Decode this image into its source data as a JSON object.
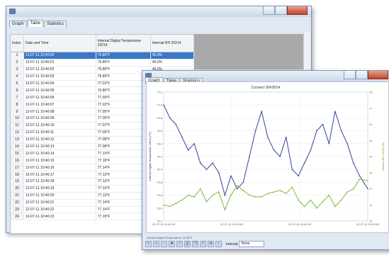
{
  "back_window": {
    "tabs": [
      "Graph",
      "Table",
      "Statistics"
    ],
    "active_tab": 1,
    "columns": [
      "Index",
      "Date and Time",
      "Internal Digital Temperature 20214",
      "Internal RH 20214"
    ],
    "rows": [
      [
        "1",
        "12-07-11 10:40:00",
        "76.80°F",
        "46.3%"
      ],
      [
        "2",
        "12-07-11 10:40:01",
        "76.80°F",
        "46.3%"
      ],
      [
        "3",
        "12-07-11 10:40:02",
        "76.80°F",
        "46.3%"
      ],
      [
        "4",
        "12-07-11 10:40:03",
        "76.80°F",
        "46.3%"
      ],
      [
        "5",
        "12-07-11 10:40:04",
        "77.02°F",
        "46.3%"
      ],
      [
        "6",
        "12-07-11 10:40:05",
        "76.80°F",
        "46.3%"
      ],
      [
        "7",
        "12-07-11 10:40:06",
        "77.00°F",
        "46.3%"
      ],
      [
        "8",
        "12-07-11 10:40:07",
        "77.02°F",
        "46.3%"
      ],
      [
        "9",
        "12-07-11 10:40:08",
        "77.05°F",
        "46.3%"
      ],
      [
        "10",
        "12-07-11 10:40:09",
        "77.05°F",
        "46.3%"
      ],
      [
        "11",
        "12-07-11 10:40:10",
        "77.07°F",
        "46.3%"
      ],
      [
        "12",
        "12-07-11 10:40:11",
        "77.05°F",
        "46.3%"
      ],
      [
        "13",
        "12-07-11 10:40:12",
        "77.08°F",
        "46.3%"
      ],
      [
        "14",
        "12-07-11 10:40:13",
        "77.08°F",
        "46.3%"
      ],
      [
        "15",
        "12-07-11 10:40:14",
        "77.13°F",
        "46.3%"
      ],
      [
        "16",
        "12-07-11 10:40:15",
        "77.16°F",
        "46.3%"
      ],
      [
        "17",
        "12-07-11 10:40:16",
        "77.14°F",
        "46.3%"
      ],
      [
        "18",
        "12-07-11 10:40:17",
        "77.13°F",
        "46.3%"
      ],
      [
        "19",
        "12-07-11 10:40:18",
        "77.13°F",
        "46.3%"
      ],
      [
        "20",
        "12-07-11 10:40:19",
        "77.13°F",
        "46.3%"
      ],
      [
        "21",
        "12-07-11 10:40:20",
        "77.13°F",
        "46.3%"
      ],
      [
        "22",
        "12-07-11 10:40:21",
        "77.14°F",
        "46.3%"
      ],
      [
        "23",
        "12-07-11 10:40:22",
        "77.14°F",
        "46.3%"
      ],
      [
        "24",
        "12-07-11 10:40:23",
        "77.15°F",
        "46.3%"
      ]
    ]
  },
  "front_window": {
    "tabs": [
      "Graph",
      "Table",
      "Statistics"
    ],
    "active_tab": 0,
    "chart_title": "Connect 304:8014",
    "status": "Internal Digital Temperature 78.55°F",
    "toolbar": {
      "icons": [
        "pointer-icon",
        "zoom-in-icon",
        "zoom-out-icon",
        "pan-icon",
        "fit-icon",
        "print-icon",
        "copy-icon",
        "export-icon",
        "settings-icon",
        "info-icon"
      ],
      "interval_label": "Interval",
      "interval_value": "None"
    }
  },
  "chart_data": {
    "type": "line",
    "title": "Connect 304:8014",
    "ylabel": "Internal Digital Temperature 20214 (°F)",
    "y2label": "Internal RH 20214 (%)",
    "xlabel": "",
    "x_ticks": [
      "12-07-11 10:40:00",
      "12-07-11 12:20:00",
      "12-07-11 15:40:00",
      "12-07-11 18:20:00"
    ],
    "y_ticks": [
      "77.2",
      "77.0",
      "76.8",
      "76.6",
      "76.4",
      "76.2",
      "76.0",
      "75.8",
      "75.6",
      "75.4",
      "75.2"
    ],
    "ylim": [
      75.2,
      77.2
    ],
    "y2_ticks": [
      "48",
      "47",
      "46",
      "45",
      "44",
      "43",
      "42",
      "41",
      "40"
    ],
    "y2lim": [
      40,
      48
    ],
    "series": [
      {
        "name": "Internal Digital Temperature 20214",
        "color": "#33449a",
        "axis": "left",
        "x": [
          0,
          3,
          6,
          9,
          12,
          15,
          18,
          21,
          24,
          27,
          30,
          33,
          36,
          39,
          42,
          45,
          48,
          51,
          54,
          57,
          60,
          63,
          66,
          69,
          72,
          75,
          78,
          81,
          84,
          87,
          90,
          93,
          96,
          100
        ],
        "values": [
          77.0,
          76.8,
          76.7,
          76.5,
          76.3,
          76.4,
          76.1,
          76.0,
          76.1,
          75.95,
          75.6,
          75.9,
          75.7,
          75.8,
          76.2,
          76.6,
          76.9,
          76.5,
          76.3,
          76.2,
          76.5,
          76.0,
          75.9,
          76.1,
          76.3,
          76.6,
          76.7,
          76.4,
          76.9,
          76.6,
          76.4,
          76.1,
          75.9,
          75.7
        ]
      },
      {
        "name": "Internal RH 20214",
        "color": "#7cb83a",
        "axis": "right",
        "x": [
          0,
          3,
          6,
          9,
          12,
          15,
          18,
          21,
          24,
          27,
          30,
          33,
          36,
          39,
          42,
          45,
          48,
          51,
          54,
          57,
          60,
          63,
          66,
          69,
          72,
          75,
          78,
          81,
          84,
          87,
          90,
          93,
          96,
          100
        ],
        "values": [
          41.0,
          40.9,
          41.1,
          41.3,
          41.6,
          41.5,
          42.0,
          41.2,
          41.6,
          41.8,
          40.7,
          41.6,
          42.2,
          41.9,
          41.6,
          41.5,
          41.5,
          41.7,
          41.8,
          41.9,
          41.7,
          42.1,
          41.3,
          40.9,
          41.3,
          40.8,
          41.2,
          41.6,
          40.9,
          41.3,
          41.8,
          42.0,
          42.6,
          42.5
        ]
      }
    ],
    "grid": true
  },
  "colors": {
    "title_bar": "#cad8ea",
    "window_bg": "#dfe8f3",
    "selection": "#3a78c7",
    "gray_area": "#a9a9a9",
    "close_button": "#c4432c"
  }
}
